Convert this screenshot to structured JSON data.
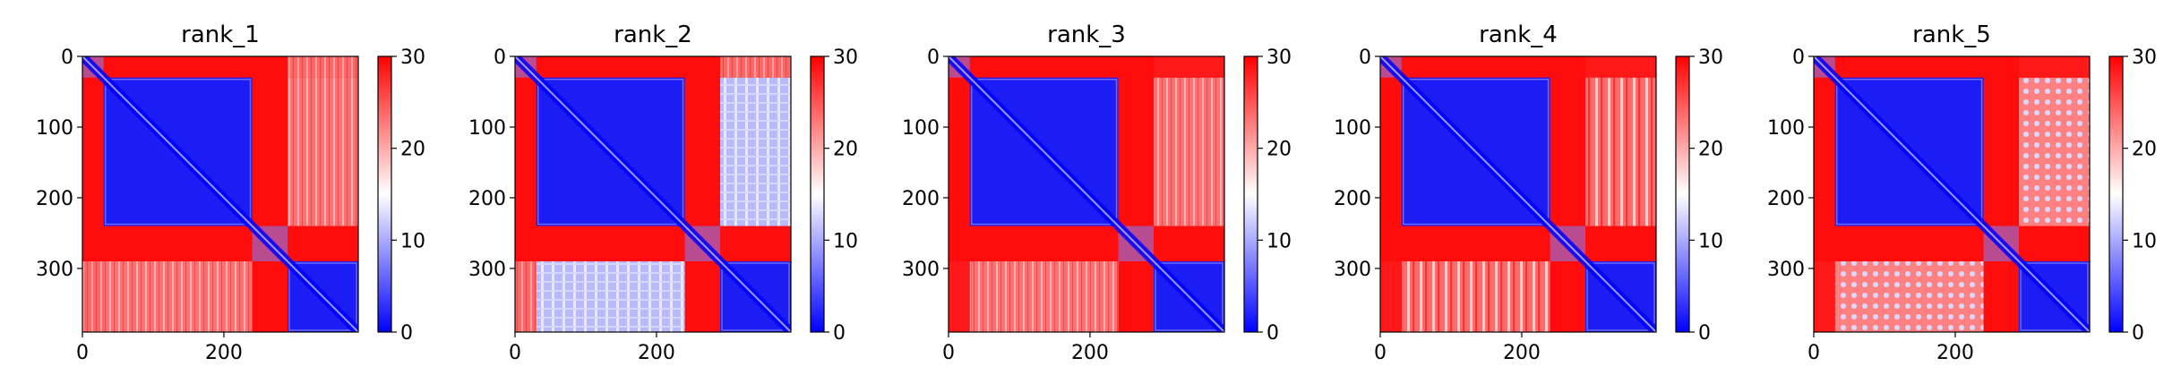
{
  "chart_data": [
    {
      "type": "heatmap",
      "title": "rank_1",
      "xlim": [
        0,
        390
      ],
      "ylim": [
        390,
        0
      ],
      "x_ticks": [
        0,
        200
      ],
      "y_ticks": [
        0,
        100,
        200,
        300
      ],
      "colorbar": {
        "colormap": "bwr",
        "range": [
          0,
          30
        ],
        "ticks": [
          0,
          10,
          20,
          30
        ]
      },
      "domains": [
        {
          "range": [
            0,
            30
          ],
          "type": "helix"
        },
        {
          "range": [
            30,
            240
          ],
          "type": "domain"
        },
        {
          "range": [
            240,
            290
          ],
          "type": "helix"
        },
        {
          "range": [
            290,
            390
          ],
          "type": "domain"
        }
      ],
      "off_diagonal_ab": "light-red",
      "off_diagonal_bc": "light-red"
    },
    {
      "type": "heatmap",
      "title": "rank_2",
      "xlim": [
        0,
        390
      ],
      "ylim": [
        390,
        0
      ],
      "x_ticks": [
        0,
        200
      ],
      "y_ticks": [
        0,
        100,
        200,
        300
      ],
      "colorbar": {
        "colormap": "bwr",
        "range": [
          0,
          30
        ],
        "ticks": [
          0,
          10,
          20,
          30
        ]
      },
      "domains": [
        {
          "range": [
            0,
            30
          ],
          "type": "helix"
        },
        {
          "range": [
            30,
            240
          ],
          "type": "domain"
        },
        {
          "range": [
            240,
            290
          ],
          "type": "helix"
        },
        {
          "range": [
            290,
            390
          ],
          "type": "domain"
        }
      ],
      "off_diagonal_ab": "light-blue",
      "off_diagonal_bc": "light-red"
    },
    {
      "type": "heatmap",
      "title": "rank_3",
      "xlim": [
        0,
        390
      ],
      "ylim": [
        390,
        0
      ],
      "x_ticks": [
        0,
        200
      ],
      "y_ticks": [
        0,
        100,
        200,
        300
      ],
      "colorbar": {
        "colormap": "bwr",
        "range": [
          0,
          30
        ],
        "ticks": [
          0,
          10,
          20,
          30
        ]
      },
      "domains": [
        {
          "range": [
            0,
            30
          ],
          "type": "helix"
        },
        {
          "range": [
            30,
            240
          ],
          "type": "domain"
        },
        {
          "range": [
            240,
            290
          ],
          "type": "helix"
        },
        {
          "range": [
            290,
            390
          ],
          "type": "domain"
        }
      ],
      "off_diagonal_ab": "light-red",
      "off_diagonal_bc": "red"
    },
    {
      "type": "heatmap",
      "title": "rank_4",
      "xlim": [
        0,
        390
      ],
      "ylim": [
        390,
        0
      ],
      "x_ticks": [
        0,
        200
      ],
      "y_ticks": [
        0,
        100,
        200,
        300
      ],
      "colorbar": {
        "colormap": "bwr",
        "range": [
          0,
          30
        ],
        "ticks": [
          0,
          10,
          20,
          30
        ]
      },
      "domains": [
        {
          "range": [
            0,
            30
          ],
          "type": "helix"
        },
        {
          "range": [
            30,
            240
          ],
          "type": "domain"
        },
        {
          "range": [
            240,
            290
          ],
          "type": "helix"
        },
        {
          "range": [
            290,
            390
          ],
          "type": "domain"
        }
      ],
      "off_diagonal_ab": "striped",
      "off_diagonal_bc": "red"
    },
    {
      "type": "heatmap",
      "title": "rank_5",
      "xlim": [
        0,
        390
      ],
      "ylim": [
        390,
        0
      ],
      "x_ticks": [
        0,
        200
      ],
      "y_ticks": [
        0,
        100,
        200,
        300
      ],
      "colorbar": {
        "colormap": "bwr",
        "range": [
          0,
          30
        ],
        "ticks": [
          0,
          10,
          20,
          30
        ]
      },
      "domains": [
        {
          "range": [
            0,
            30
          ],
          "type": "helix"
        },
        {
          "range": [
            30,
            240
          ],
          "type": "domain"
        },
        {
          "range": [
            240,
            290
          ],
          "type": "helix"
        },
        {
          "range": [
            290,
            390
          ],
          "type": "domain"
        }
      ],
      "off_diagonal_ab": "spotted",
      "off_diagonal_bc": "red"
    }
  ],
  "colors": {
    "low": "#0000ff",
    "mid": "#ffffff",
    "high": "#ff0000",
    "axis": "#000000"
  }
}
